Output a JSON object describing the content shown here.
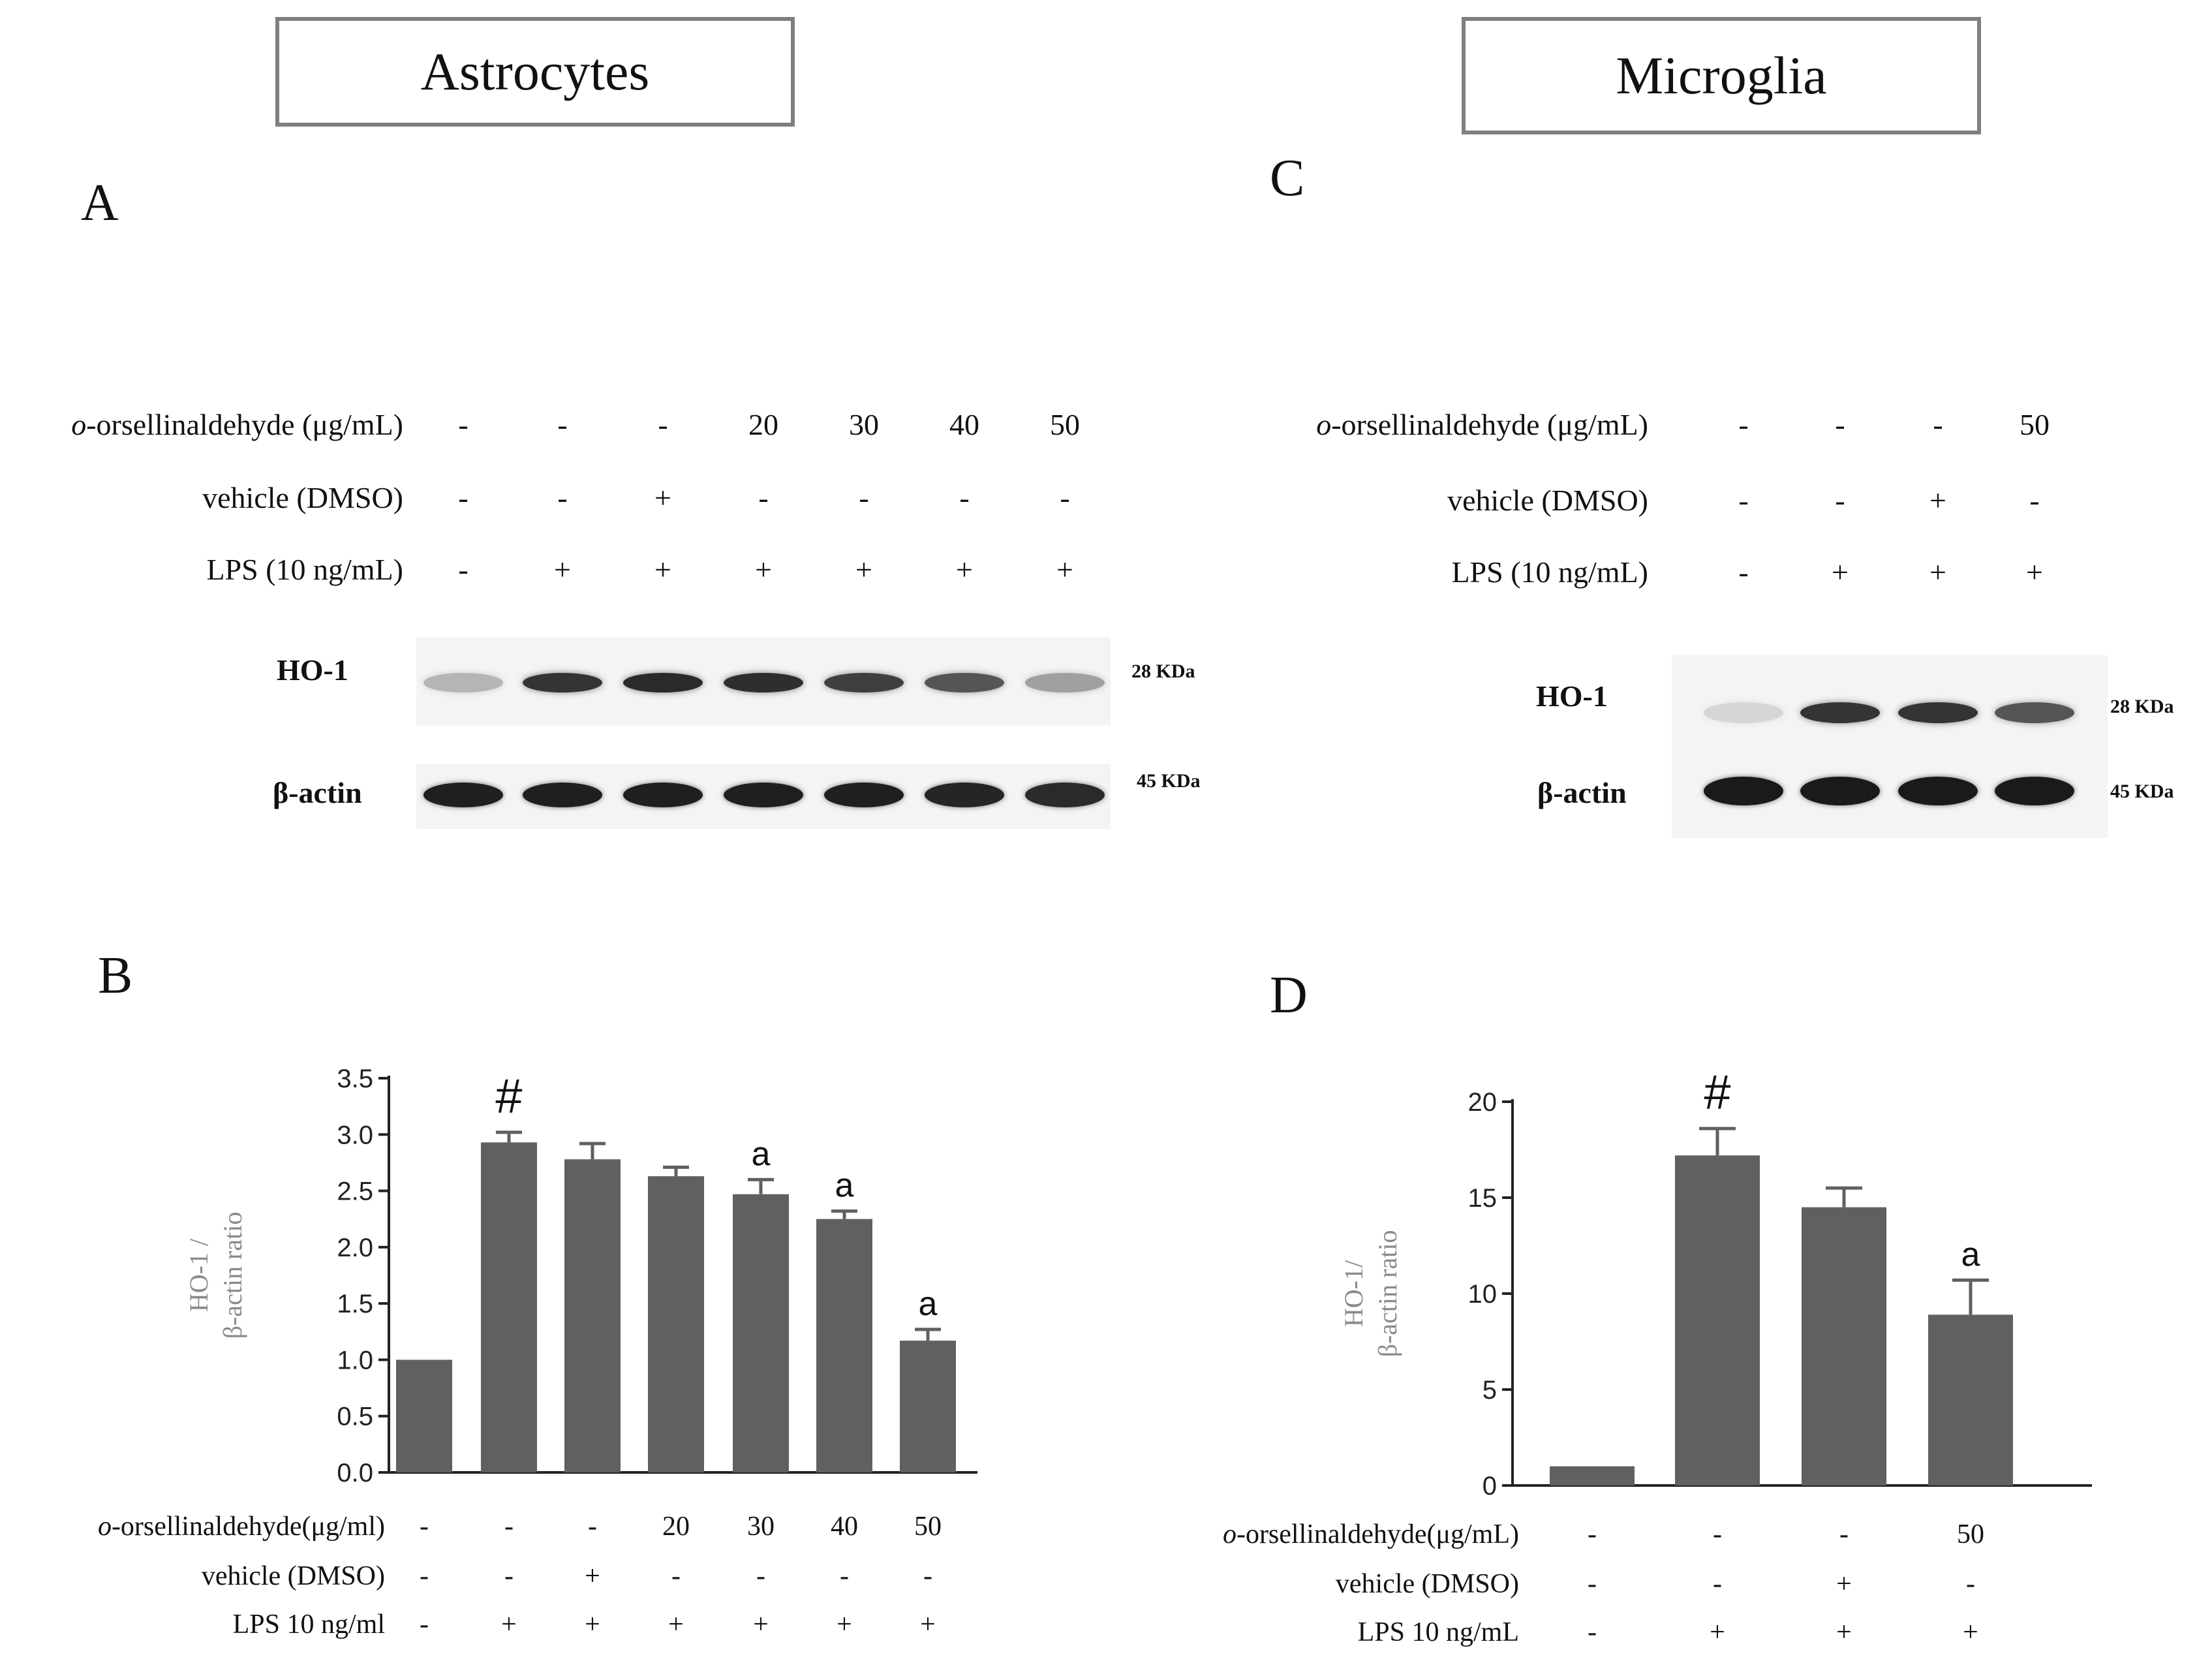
{
  "titles": {
    "astro": "Astrocytes",
    "micro": "Microglia"
  },
  "panels": {
    "a": "A",
    "b": "B",
    "c": "C",
    "d": "D"
  },
  "blot_a": {
    "rows": [
      {
        "label_prefix": "o",
        "label_rest": "-orsellinaldehyde (μg/mL)",
        "values": [
          "-",
          "-",
          "-",
          "20",
          "30",
          "40",
          "50"
        ]
      },
      {
        "label_prefix": "",
        "label_rest": "vehicle (DMSO)",
        "values": [
          "-",
          "-",
          "+",
          "-",
          "-",
          "-",
          "-"
        ]
      },
      {
        "label_prefix": "",
        "label_rest": "LPS (10 ng/mL)",
        "values": [
          "-",
          "+",
          "+",
          "+",
          "+",
          "+",
          "+"
        ]
      }
    ],
    "protein1": "HO-1",
    "protein2": "β-actin",
    "kda1": "28 KDa",
    "kda2": "45 KDa",
    "ho1_intensity": [
      0.25,
      0.85,
      0.9,
      0.88,
      0.8,
      0.7,
      0.35
    ],
    "actin_intensity": [
      0.95,
      0.95,
      0.95,
      0.95,
      0.95,
      0.92,
      0.9
    ]
  },
  "blot_c": {
    "rows": [
      {
        "label_prefix": "o",
        "label_rest": "-orsellinaldehyde (μg/mL)",
        "values": [
          "-",
          "-",
          "-",
          "50"
        ]
      },
      {
        "label_prefix": "",
        "label_rest": "vehicle (DMSO)",
        "values": [
          "-",
          "-",
          "+",
          "-"
        ]
      },
      {
        "label_prefix": "",
        "label_rest": "LPS (10 ng/mL)",
        "values": [
          "-",
          "+",
          "+",
          "+"
        ]
      }
    ],
    "protein1": "HO-1",
    "protein2": "β-actin",
    "kda1": "28 KDa",
    "kda2": "45 KDa",
    "ho1_intensity": [
      0.1,
      0.85,
      0.85,
      0.7
    ],
    "actin_intensity": [
      0.97,
      0.97,
      0.97,
      0.97
    ]
  },
  "chart_data": [
    {
      "type": "bar",
      "panel": "B",
      "ylabel_line1": "HO-1 /",
      "ylabel_line2": "β-actin ratio",
      "ylim": [
        0,
        3.5
      ],
      "yticks": [
        "0.0",
        "0.5",
        "1.0",
        "1.5",
        "2.0",
        "2.5",
        "3.0",
        "3.5"
      ],
      "values": [
        1.0,
        2.93,
        2.78,
        2.63,
        2.47,
        2.25,
        1.17
      ],
      "errors": [
        0,
        0.09,
        0.14,
        0.08,
        0.13,
        0.07,
        0.1
      ],
      "annotations": [
        "",
        "#",
        "",
        "",
        "a",
        "a",
        "a"
      ],
      "bar_color": "#606060",
      "conditions": [
        {
          "label_prefix": "o",
          "label_rest": "-orsellinaldehyde(μg/ml)",
          "values": [
            "-",
            "-",
            "-",
            "20",
            "30",
            "40",
            "50"
          ]
        },
        {
          "label_prefix": "",
          "label_rest": "vehicle (DMSO)",
          "values": [
            "-",
            "-",
            "+",
            "-",
            "-",
            "-",
            "-"
          ]
        },
        {
          "label_prefix": "",
          "label_rest": "LPS 10 ng/ml",
          "values": [
            "-",
            "+",
            "+",
            "+",
            "+",
            "+",
            "+"
          ]
        }
      ]
    },
    {
      "type": "bar",
      "panel": "D",
      "ylabel_line1": "HO-1/",
      "ylabel_line2": "β-actin ratio",
      "ylim": [
        0,
        20
      ],
      "yticks": [
        "0",
        "5",
        "10",
        "15",
        "20"
      ],
      "values": [
        1.0,
        17.2,
        14.5,
        8.9
      ],
      "errors": [
        0,
        1.4,
        1.0,
        1.8
      ],
      "annotations": [
        "",
        "#",
        "",
        "a"
      ],
      "bar_color": "#606060",
      "conditions": [
        {
          "label_prefix": "o",
          "label_rest": "-orsellinaldehyde(μg/mL)",
          "values": [
            "-",
            "-",
            "-",
            "50"
          ]
        },
        {
          "label_prefix": "",
          "label_rest": "vehicle (DMSO)",
          "values": [
            "-",
            "-",
            "+",
            "-"
          ]
        },
        {
          "label_prefix": "",
          "label_rest": "LPS 10 ng/mL",
          "values": [
            "-",
            "+",
            "+",
            "+"
          ]
        }
      ]
    }
  ]
}
